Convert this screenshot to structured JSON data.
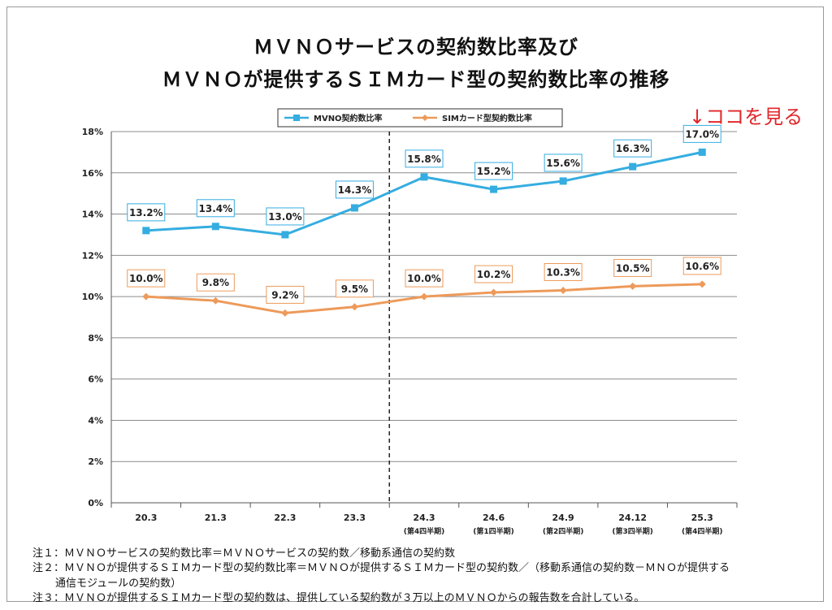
{
  "title": [
    "ＭＶＮＯサービスの契約数比率及び",
    "ＭＶＮＯが提供するＳＩＭカード型の契約数比率の推移"
  ],
  "annotation": "↓ココを見る",
  "notes": [
    "注１：ＭＶＮＯサービスの契約数比率＝ＭＶＮＯサービスの契約数／移動系通信の契約数",
    "注２：ＭＶＮＯが提供するＳＩＭカード型の契約数比率＝ＭＶＮＯが提供するＳＩＭカード型の契約数／（移動系通信の契約数－ＭＮＯが提供する",
    "通信モジュールの契約数）",
    "注３：ＭＶＮＯが提供するＳＩＭカード型の契約数は、提供している契約数が３万以上のＭＶＮＯからの報告数を合計している。"
  ],
  "colors": {
    "mvno": "#35ade0",
    "sim": "#ed9a5a",
    "grid": "#8c8c8c",
    "annotation": "#e0262a"
  },
  "chart_data": {
    "type": "line",
    "categories": [
      "20.3",
      "21.3",
      "22.3",
      "23.3",
      "24.3",
      "24.6",
      "24.9",
      "24.12",
      "25.3"
    ],
    "category_sublabels": [
      "",
      "",
      "",
      "",
      "(第4四半期)",
      "(第1四半期)",
      "(第2四半期)",
      "(第3四半期)",
      "(第4四半期)"
    ],
    "series": [
      {
        "name": "MVNO契約数比率",
        "values": [
          13.2,
          13.4,
          13.0,
          14.3,
          15.8,
          15.2,
          15.6,
          16.3,
          17.0
        ],
        "labels": [
          "13.2%",
          "13.4%",
          "13.0%",
          "14.3%",
          "15.8%",
          "15.2%",
          "15.6%",
          "16.3%",
          "17.0%"
        ]
      },
      {
        "name": "SIMカード型契約数比率",
        "values": [
          10.0,
          9.8,
          9.2,
          9.5,
          10.0,
          10.2,
          10.3,
          10.5,
          10.6
        ],
        "labels": [
          "10.0%",
          "9.8%",
          "9.2%",
          "9.5%",
          "10.0%",
          "10.2%",
          "10.3%",
          "10.5%",
          "10.6%"
        ]
      }
    ],
    "ylim": [
      0,
      18
    ],
    "yticks": [
      0,
      2,
      4,
      6,
      8,
      10,
      12,
      14,
      16,
      18
    ],
    "ytick_labels": [
      "0%",
      "2%",
      "4%",
      "6%",
      "8%",
      "10%",
      "12%",
      "14%",
      "16%",
      "18%"
    ],
    "legend_position": "top",
    "grid": true,
    "divider_between": [
      "23.3",
      "24.3"
    ]
  }
}
